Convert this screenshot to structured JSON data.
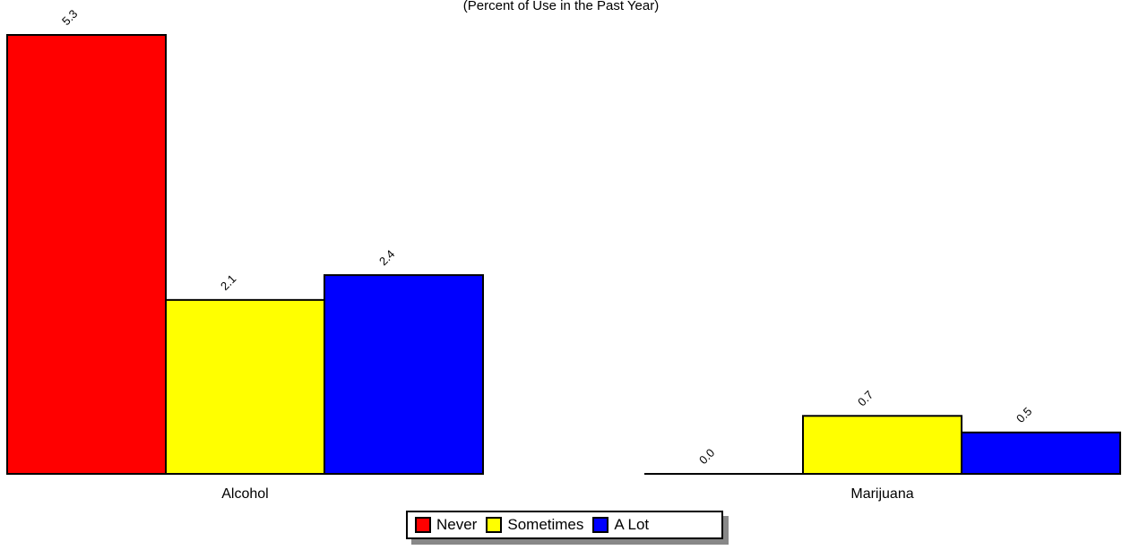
{
  "chart_data": {
    "type": "bar",
    "title": "",
    "subtitle": "(Percent of Use in the Past Year)",
    "categories": [
      "Alcohol",
      "Marijuana"
    ],
    "series": [
      {
        "name": "Never",
        "color": "#ff0000",
        "values": [
          5.3,
          0.0
        ],
        "labels": [
          "5.3",
          "0.0"
        ]
      },
      {
        "name": "Sometimes",
        "color": "#ffff00",
        "values": [
          2.1,
          0.7
        ],
        "labels": [
          "2.1",
          "0.7"
        ]
      },
      {
        "name": "A Lot",
        "color": "#0000ff",
        "values": [
          2.4,
          0.5
        ],
        "labels": [
          "2.4",
          "0.5"
        ]
      }
    ],
    "ylim": [
      0,
      5.3
    ],
    "grid": false,
    "legend_position": "bottom-center"
  }
}
